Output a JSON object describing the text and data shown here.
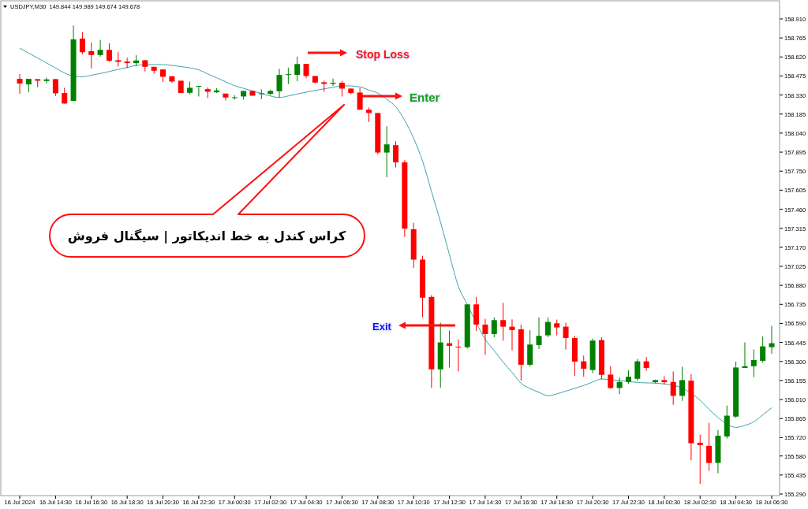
{
  "chart_data": {
    "type": "candlestick",
    "title": "USDJPY,M30  149.844 149.989 149.674 149.678",
    "categories": [
      "16 Jul 2024",
      null,
      null,
      null,
      "16 Jul 14:30",
      null,
      null,
      null,
      "16 Jul 16:30",
      null,
      null,
      null,
      "16 Jul 18:30",
      null,
      null,
      null,
      "16 Jul 20:30",
      null,
      null,
      null,
      "16 Jul 22:30",
      null,
      null,
      null,
      "17 Jul 00:30",
      null,
      null,
      null,
      "17 Jul 02:30",
      null,
      null,
      null,
      "17 Jul 04:30",
      null,
      null,
      null,
      "17 Jul 06:30",
      null,
      null,
      null,
      "17 Jul 08:30",
      null,
      null,
      null,
      "17 Jul 10:30",
      null,
      null,
      null,
      "17 Jul 12:30",
      null,
      null,
      null,
      "17 Jul 14:30",
      null,
      null,
      null,
      "17 Jul 16:30",
      null,
      null,
      null,
      "17 Jul 18:30",
      null,
      null,
      null,
      "17 Jul 20:30",
      null,
      null,
      null,
      "17 Jul 22:30",
      null,
      null,
      null,
      "18 Jul 00:30",
      null,
      null,
      null,
      "18 Jul 02:30",
      null,
      null,
      null,
      "18 Jul 04:30",
      null,
      null,
      null,
      "18 Jul 06:30"
    ],
    "ohlc": [
      [
        158.453,
        158.489,
        158.339,
        158.417
      ],
      [
        158.411,
        158.453,
        158.351,
        158.453
      ],
      [
        158.451,
        158.451,
        158.389,
        158.439
      ],
      [
        158.437,
        158.463,
        158.419,
        158.449
      ],
      [
        158.451,
        158.451,
        158.323,
        158.343
      ],
      [
        158.345,
        158.385,
        158.265,
        158.265
      ],
      [
        158.285,
        158.86,
        158.285,
        158.754
      ],
      [
        158.76,
        158.808,
        158.64,
        158.656
      ],
      [
        158.664,
        158.731,
        158.533,
        158.635
      ],
      [
        158.635,
        158.75,
        158.623,
        158.674
      ],
      [
        158.674,
        158.724,
        158.583,
        158.591
      ],
      [
        158.595,
        158.656,
        158.547,
        158.583
      ],
      [
        158.585,
        158.614,
        158.535,
        158.573
      ],
      [
        158.573,
        158.633,
        158.549,
        158.593
      ],
      [
        158.595,
        158.595,
        158.509,
        158.545
      ],
      [
        158.545,
        158.545,
        158.491,
        158.515
      ],
      [
        158.525,
        158.525,
        158.429,
        158.469
      ],
      [
        158.473,
        158.473,
        158.423,
        158.433
      ],
      [
        158.439,
        158.439,
        158.345,
        158.345
      ],
      [
        158.347,
        158.433,
        158.335,
        158.385
      ],
      [
        158.393,
        158.399,
        158.319,
        158.399
      ],
      [
        158.375,
        158.389,
        158.307,
        158.355
      ],
      [
        158.351,
        158.383,
        158.345,
        158.365
      ],
      [
        158.341,
        158.341,
        158.289,
        158.311
      ],
      [
        158.311,
        158.329,
        158.295,
        158.313
      ],
      [
        158.319,
        158.361,
        158.295,
        158.361
      ],
      [
        158.361,
        158.365,
        158.325,
        158.325
      ],
      [
        158.339,
        158.373,
        158.299,
        158.343
      ],
      [
        158.339,
        158.369,
        158.329,
        158.361
      ],
      [
        158.359,
        158.53,
        158.309,
        158.483
      ],
      [
        158.487,
        158.539,
        158.413,
        158.489
      ],
      [
        158.483,
        158.623,
        158.435,
        158.566
      ],
      [
        158.567,
        158.567,
        158.459,
        158.475
      ],
      [
        158.475,
        158.475,
        158.419,
        158.425
      ],
      [
        158.427,
        158.439,
        158.355,
        158.415
      ],
      [
        158.415,
        158.455,
        158.399,
        158.423
      ],
      [
        158.423,
        158.439,
        158.319,
        158.379
      ],
      [
        158.379,
        158.379,
        158.335,
        158.345
      ],
      [
        158.349,
        158.385,
        158.218,
        158.218
      ],
      [
        158.218,
        158.235,
        158.124,
        158.193
      ],
      [
        158.193,
        158.193,
        157.878,
        157.892
      ],
      [
        157.892,
        158.092,
        157.703,
        157.954
      ],
      [
        157.948,
        157.978,
        157.778,
        157.817
      ],
      [
        157.817,
        157.834,
        157.25,
        157.312
      ],
      [
        157.307,
        157.357,
        157.012,
        157.076
      ],
      [
        157.076,
        157.105,
        156.636,
        156.786
      ],
      [
        156.792,
        156.806,
        156.098,
        156.24
      ],
      [
        156.24,
        156.595,
        156.1,
        156.445
      ],
      [
        156.439,
        156.535,
        156.254,
        156.419
      ],
      [
        156.413,
        156.469,
        156.224,
        156.407
      ],
      [
        156.409,
        156.735,
        156.399,
        156.735
      ],
      [
        156.735,
        156.792,
        156.531,
        156.581
      ],
      [
        156.581,
        156.625,
        156.351,
        156.509
      ],
      [
        156.509,
        156.635,
        156.485,
        156.615
      ],
      [
        156.615,
        156.746,
        156.459,
        156.565
      ],
      [
        156.565,
        156.621,
        156.385,
        156.539
      ],
      [
        156.545,
        156.581,
        156.154,
        156.275
      ],
      [
        156.275,
        156.539,
        156.261,
        156.429
      ],
      [
        156.425,
        156.635,
        156.395,
        156.495
      ],
      [
        156.499,
        156.635,
        156.485,
        156.601
      ],
      [
        156.591,
        156.619,
        156.499,
        156.559
      ],
      [
        156.565,
        156.595,
        156.391,
        156.479
      ],
      [
        156.479,
        156.495,
        156.191,
        156.299
      ],
      [
        156.301,
        156.345,
        156.184,
        156.245
      ],
      [
        156.235,
        156.475,
        156.211,
        156.459
      ],
      [
        156.463,
        156.485,
        156.164,
        156.198
      ],
      [
        156.2,
        156.264,
        156.09,
        156.098
      ],
      [
        156.098,
        156.18,
        156.05,
        156.144
      ],
      [
        156.144,
        156.234,
        156.13,
        156.184
      ],
      [
        156.168,
        156.319,
        156.154,
        156.301
      ],
      [
        156.301,
        156.335,
        156.229,
        156.251
      ],
      [
        156.142,
        156.162,
        156.134,
        156.158
      ],
      [
        156.158,
        156.188,
        156.124,
        156.142
      ],
      [
        156.144,
        156.224,
        155.97,
        156.038
      ],
      [
        156.038,
        156.26,
        156.0,
        156.158
      ],
      [
        156.154,
        156.204,
        155.547,
        155.677
      ],
      [
        155.681,
        155.743,
        155.367,
        155.663
      ],
      [
        155.657,
        155.833,
        155.467,
        155.527
      ],
      [
        155.527,
        155.777,
        155.448,
        155.734
      ],
      [
        155.729,
        155.964,
        155.713,
        155.887
      ],
      [
        155.88,
        156.299,
        155.87,
        156.254
      ],
      [
        156.25,
        156.445,
        156.25,
        156.264
      ],
      [
        156.264,
        156.391,
        156.18,
        156.311
      ],
      [
        156.305,
        156.491,
        156.291,
        156.415
      ],
      [
        156.409,
        156.571,
        156.359,
        156.439
      ]
    ],
    "series": [
      {
        "type": "line",
        "color": "#3fa3a8",
        "values": [
          158.687,
          158.649,
          158.612,
          158.574,
          158.536,
          158.498,
          158.475,
          158.469,
          158.481,
          158.494,
          158.509,
          158.525,
          158.54,
          158.556,
          158.561,
          158.562,
          158.562,
          158.556,
          158.547,
          158.537,
          158.522,
          158.491,
          158.461,
          158.431,
          158.401,
          158.381,
          158.361,
          158.342,
          158.323,
          158.311,
          158.323,
          158.338,
          158.352,
          158.365,
          158.377,
          158.389,
          158.401,
          158.399,
          158.392,
          158.368,
          158.344,
          158.297,
          158.241,
          158.137,
          158.0,
          157.826,
          157.595,
          157.363,
          157.114,
          156.873,
          156.733,
          156.593,
          156.469,
          156.382,
          156.295,
          156.217,
          156.134,
          156.094,
          156.065,
          156.039,
          156.053,
          156.074,
          156.095,
          156.117,
          156.143,
          156.167,
          156.161,
          156.155,
          156.148,
          156.14,
          156.137,
          156.135,
          156.129,
          156.119,
          156.097,
          156.057,
          156.005,
          155.935,
          155.873,
          155.823,
          155.798,
          155.813,
          155.84,
          155.893,
          155.947
        ]
      }
    ],
    "ylim": [
      155.278,
      159.048
    ],
    "yticks": [
      {
        "value": 158.91,
        "label": "158.910"
      },
      158.765,
      {
        "value": 158.62,
        "label": "158.620"
      },
      158.475,
      {
        "value": 158.33,
        "label": "158.330"
      },
      158.185,
      {
        "value": 158.04,
        "label": "158.040"
      },
      157.895,
      {
        "value": 157.75,
        "label": "157.750"
      },
      157.605,
      {
        "value": 157.46,
        "label": "157.460"
      },
      157.315,
      {
        "value": 157.17,
        "label": "157.170"
      },
      157.025,
      {
        "value": 156.88,
        "label": "156.880"
      },
      156.735,
      {
        "value": 156.59,
        "label": "156.590"
      },
      156.445,
      {
        "value": 156.3,
        "label": "156.300"
      },
      156.155,
      {
        "value": 156.01,
        "label": "156.010"
      },
      155.865,
      {
        "value": 155.72,
        "label": "155.720"
      },
      {
        "value": 155.58,
        "label": "155.580"
      },
      155.435,
      {
        "value": 155.29,
        "label": "155.290"
      }
    ],
    "grid": false,
    "annotations": [
      "Stop Loss",
      "Enter",
      "Exit",
      "کراس کندل به خط اندیکاتور | سیگنال فروش"
    ]
  }
}
